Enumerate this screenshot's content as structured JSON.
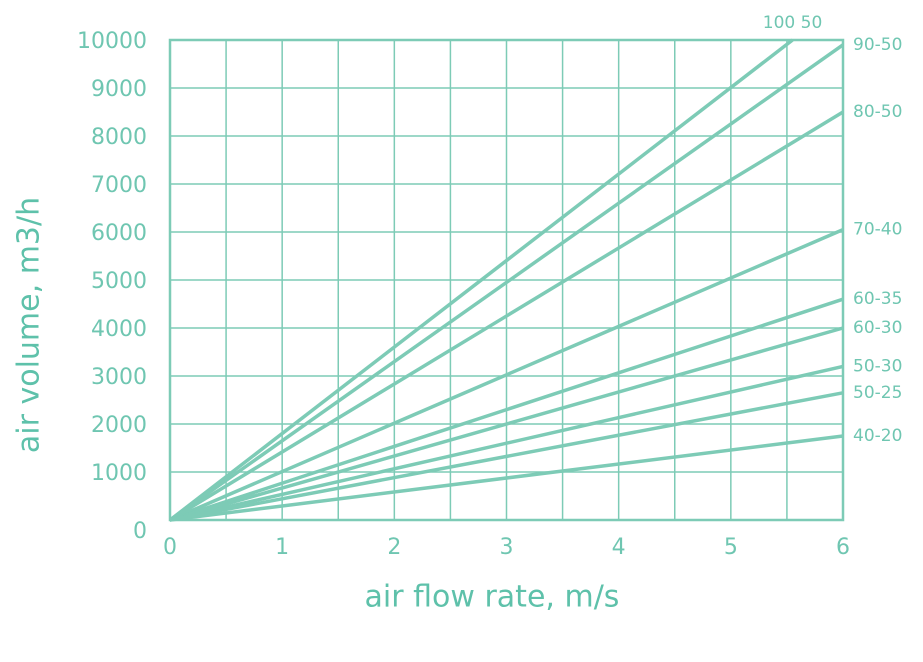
{
  "chart_data": {
    "type": "line",
    "xlabel": "air flow rate, m/s",
    "ylabel": "air volume, m3/h",
    "xlim": [
      0,
      6
    ],
    "ylim": [
      0,
      10000
    ],
    "xticks": [
      0,
      1,
      2,
      3,
      4,
      5,
      6
    ],
    "yticks": [
      0,
      1000,
      2000,
      3000,
      4000,
      5000,
      6000,
      7000,
      8000,
      9000,
      10000
    ],
    "x_grid_lines": [
      0.5,
      1,
      1.5,
      2,
      2.5,
      3,
      3.5,
      4,
      4.5,
      5,
      5.5
    ],
    "grid": true,
    "color": "#7dcbb6",
    "series": [
      {
        "name": "100 50",
        "x": [
          0,
          5.55
        ],
        "values": [
          0,
          10000
        ]
      },
      {
        "name": "90-50",
        "x": [
          0,
          6
        ],
        "values": [
          0,
          9900
        ]
      },
      {
        "name": "80-50",
        "x": [
          0,
          6
        ],
        "values": [
          0,
          8500
        ]
      },
      {
        "name": "70-40",
        "x": [
          0,
          6
        ],
        "values": [
          0,
          6050
        ]
      },
      {
        "name": "60-35",
        "x": [
          0,
          6
        ],
        "values": [
          0,
          4600
        ]
      },
      {
        "name": "60-30",
        "x": [
          0,
          6
        ],
        "values": [
          0,
          4000
        ]
      },
      {
        "name": "50-30",
        "x": [
          0,
          6
        ],
        "values": [
          0,
          3200
        ]
      },
      {
        "name": "50-25",
        "x": [
          0,
          6
        ],
        "values": [
          0,
          2650
        ]
      },
      {
        "name": "40-20",
        "x": [
          0,
          6
        ],
        "values": [
          0,
          1750
        ]
      }
    ]
  }
}
